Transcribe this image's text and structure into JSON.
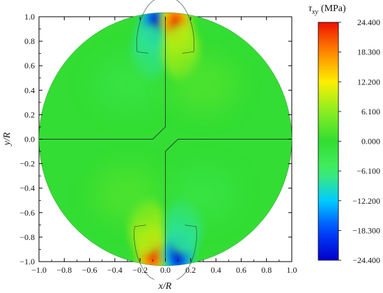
{
  "chart_data": {
    "type": "heatmap",
    "title": "",
    "xlabel": "x/R",
    "ylabel": "y/R",
    "xlim": [
      -1.0,
      1.0
    ],
    "ylim": [
      -1.0,
      1.0
    ],
    "x_ticks": [
      "−1.0",
      "−0.8",
      "−0.6",
      "−0.4",
      "−0.2",
      "0.0",
      "0.2",
      "0.4",
      "0.6",
      "0.8",
      "1.0"
    ],
    "y_ticks": [
      "−1.0",
      "−0.8",
      "−0.6",
      "−0.4",
      "−0.2",
      "0.0",
      "0.2",
      "0.4",
      "0.6",
      "0.8",
      "1.0"
    ],
    "colorbar": {
      "title_symbol": "τ",
      "title_subscript": "xy",
      "title_unit": "(MPa)",
      "min": -24.4,
      "max": 24.4,
      "tick_labels": [
        "24.400",
        "18.300",
        "12.200",
        "6.100",
        "0.000",
        "−6.100",
        "−12.200",
        "−18.300",
        "−24.400"
      ],
      "tick_values": [
        24.4,
        18.3,
        12.2,
        6.1,
        0.0,
        -6.1,
        -12.2,
        -18.3,
        -24.4
      ],
      "colormap": [
        "#0000cc",
        "#0044ff",
        "#00ccff",
        "#44ee66",
        "#33dd33",
        "#88ee22",
        "#ffee00",
        "#ff8800",
        "#ee1100"
      ]
    },
    "domain": "disk of radius 1 centered at origin",
    "background_value": 0.0,
    "hotspots": [
      {
        "x": -0.08,
        "y": 0.93,
        "value": -24.4
      },
      {
        "x": 0.08,
        "y": 0.93,
        "value": 24.4
      },
      {
        "x": -0.12,
        "y": 0.72,
        "value": -8.0
      },
      {
        "x": 0.12,
        "y": 0.72,
        "value": 8.0
      },
      {
        "x": -0.1,
        "y": -0.93,
        "value": 24.4
      },
      {
        "x": 0.1,
        "y": -0.93,
        "value": -24.4
      },
      {
        "x": -0.14,
        "y": -0.72,
        "value": 8.0
      },
      {
        "x": 0.14,
        "y": -0.72,
        "value": -8.0
      },
      {
        "x": -0.3,
        "y": 0.45,
        "value": -2.0
      },
      {
        "x": 0.3,
        "y": 0.45,
        "value": 2.0
      },
      {
        "x": -0.3,
        "y": -0.45,
        "value": 2.0
      },
      {
        "x": 0.3,
        "y": -0.45,
        "value": -2.0
      }
    ],
    "lines": [
      {
        "name": "vertical-upper",
        "points": [
          [
            0.0,
            1.0
          ],
          [
            0.0,
            0.1
          ],
          [
            -0.1,
            0.0
          ],
          [
            -1.0,
            0.0
          ]
        ]
      },
      {
        "name": "vertical-lower",
        "points": [
          [
            0.0,
            -1.0
          ],
          [
            0.0,
            -0.1
          ],
          [
            0.1,
            0.0
          ],
          [
            1.0,
            0.0
          ]
        ]
      }
    ]
  }
}
